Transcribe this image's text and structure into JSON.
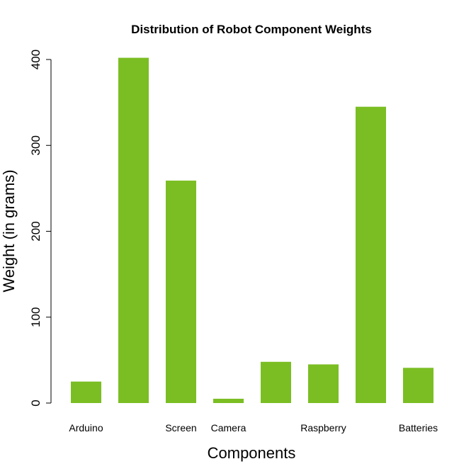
{
  "chart_data": {
    "type": "bar",
    "title": "Distribution of Robot Component Weights",
    "xlabel": "Components",
    "ylabel": "Weight (in grams)",
    "categories": [
      "Arduino",
      "",
      "Screen",
      "Camera",
      "",
      "Raspberry",
      "",
      "Batteries"
    ],
    "values": [
      25,
      402,
      259,
      5,
      48,
      45,
      345,
      41
    ],
    "ylim": [
      0,
      400
    ],
    "yticks": [
      0,
      100,
      200,
      300,
      400
    ],
    "grid": false,
    "legend": "none",
    "bar_color": "#7BBE23"
  }
}
